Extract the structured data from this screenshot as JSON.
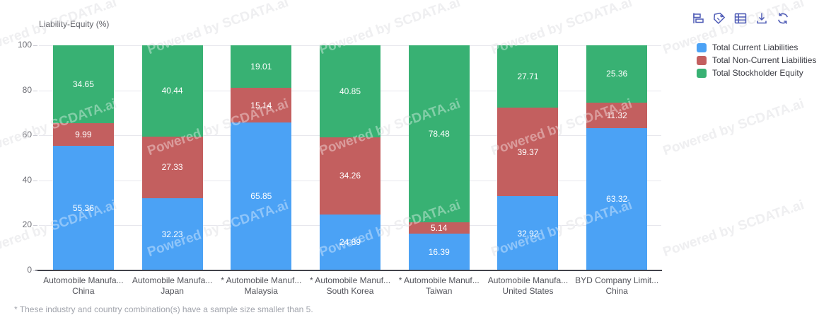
{
  "watermark": {
    "text": "Powered by SCDATA.ai"
  },
  "toolbar": {
    "buttons": [
      {
        "name": "bar-chart"
      },
      {
        "name": "tag"
      },
      {
        "name": "table"
      },
      {
        "name": "download"
      },
      {
        "name": "refresh"
      }
    ],
    "icon_color": "#4d5ab5"
  },
  "legend": [
    {
      "label": "Total Current Liabilities",
      "color": "#4ba2f5"
    },
    {
      "label": "Total Non-Current Liabilities",
      "color": "#c35f5f"
    },
    {
      "label": "Total Stockholder Equity",
      "color": "#38b173"
    }
  ],
  "chart_data": {
    "type": "bar",
    "stacked": true,
    "title": "Liability-Equity (%)",
    "ylim": [
      0,
      100
    ],
    "yticks": [
      0,
      20,
      40,
      60,
      80,
      100
    ],
    "grid": true,
    "legend_position": "top-right",
    "categories": [
      {
        "line1": "Automobile Manufa...",
        "line2": "China"
      },
      {
        "line1": "Automobile Manufa...",
        "line2": "Japan"
      },
      {
        "line1": "* Automobile Manuf...",
        "line2": "Malaysia"
      },
      {
        "line1": "* Automobile Manuf...",
        "line2": "South Korea"
      },
      {
        "line1": "* Automobile Manuf...",
        "line2": "Taiwan"
      },
      {
        "line1": "Automobile Manufa...",
        "line2": "United States"
      },
      {
        "line1": "BYD Company Limit...",
        "line2": "China"
      }
    ],
    "series": [
      {
        "name": "Total Current Liabilities",
        "color": "#4ba2f5",
        "values": [
          55.36,
          32.23,
          65.85,
          24.89,
          16.39,
          32.92,
          63.32
        ]
      },
      {
        "name": "Total Non-Current Liabilities",
        "color": "#c35f5f",
        "values": [
          9.99,
          27.33,
          15.14,
          34.26,
          5.14,
          39.37,
          11.32
        ]
      },
      {
        "name": "Total Stockholder Equity",
        "color": "#38b173",
        "values": [
          34.65,
          40.44,
          19.01,
          40.85,
          78.48,
          27.71,
          25.36
        ]
      }
    ],
    "footnote": "* These industry and country combination(s) have a sample size smaller than 5."
  }
}
